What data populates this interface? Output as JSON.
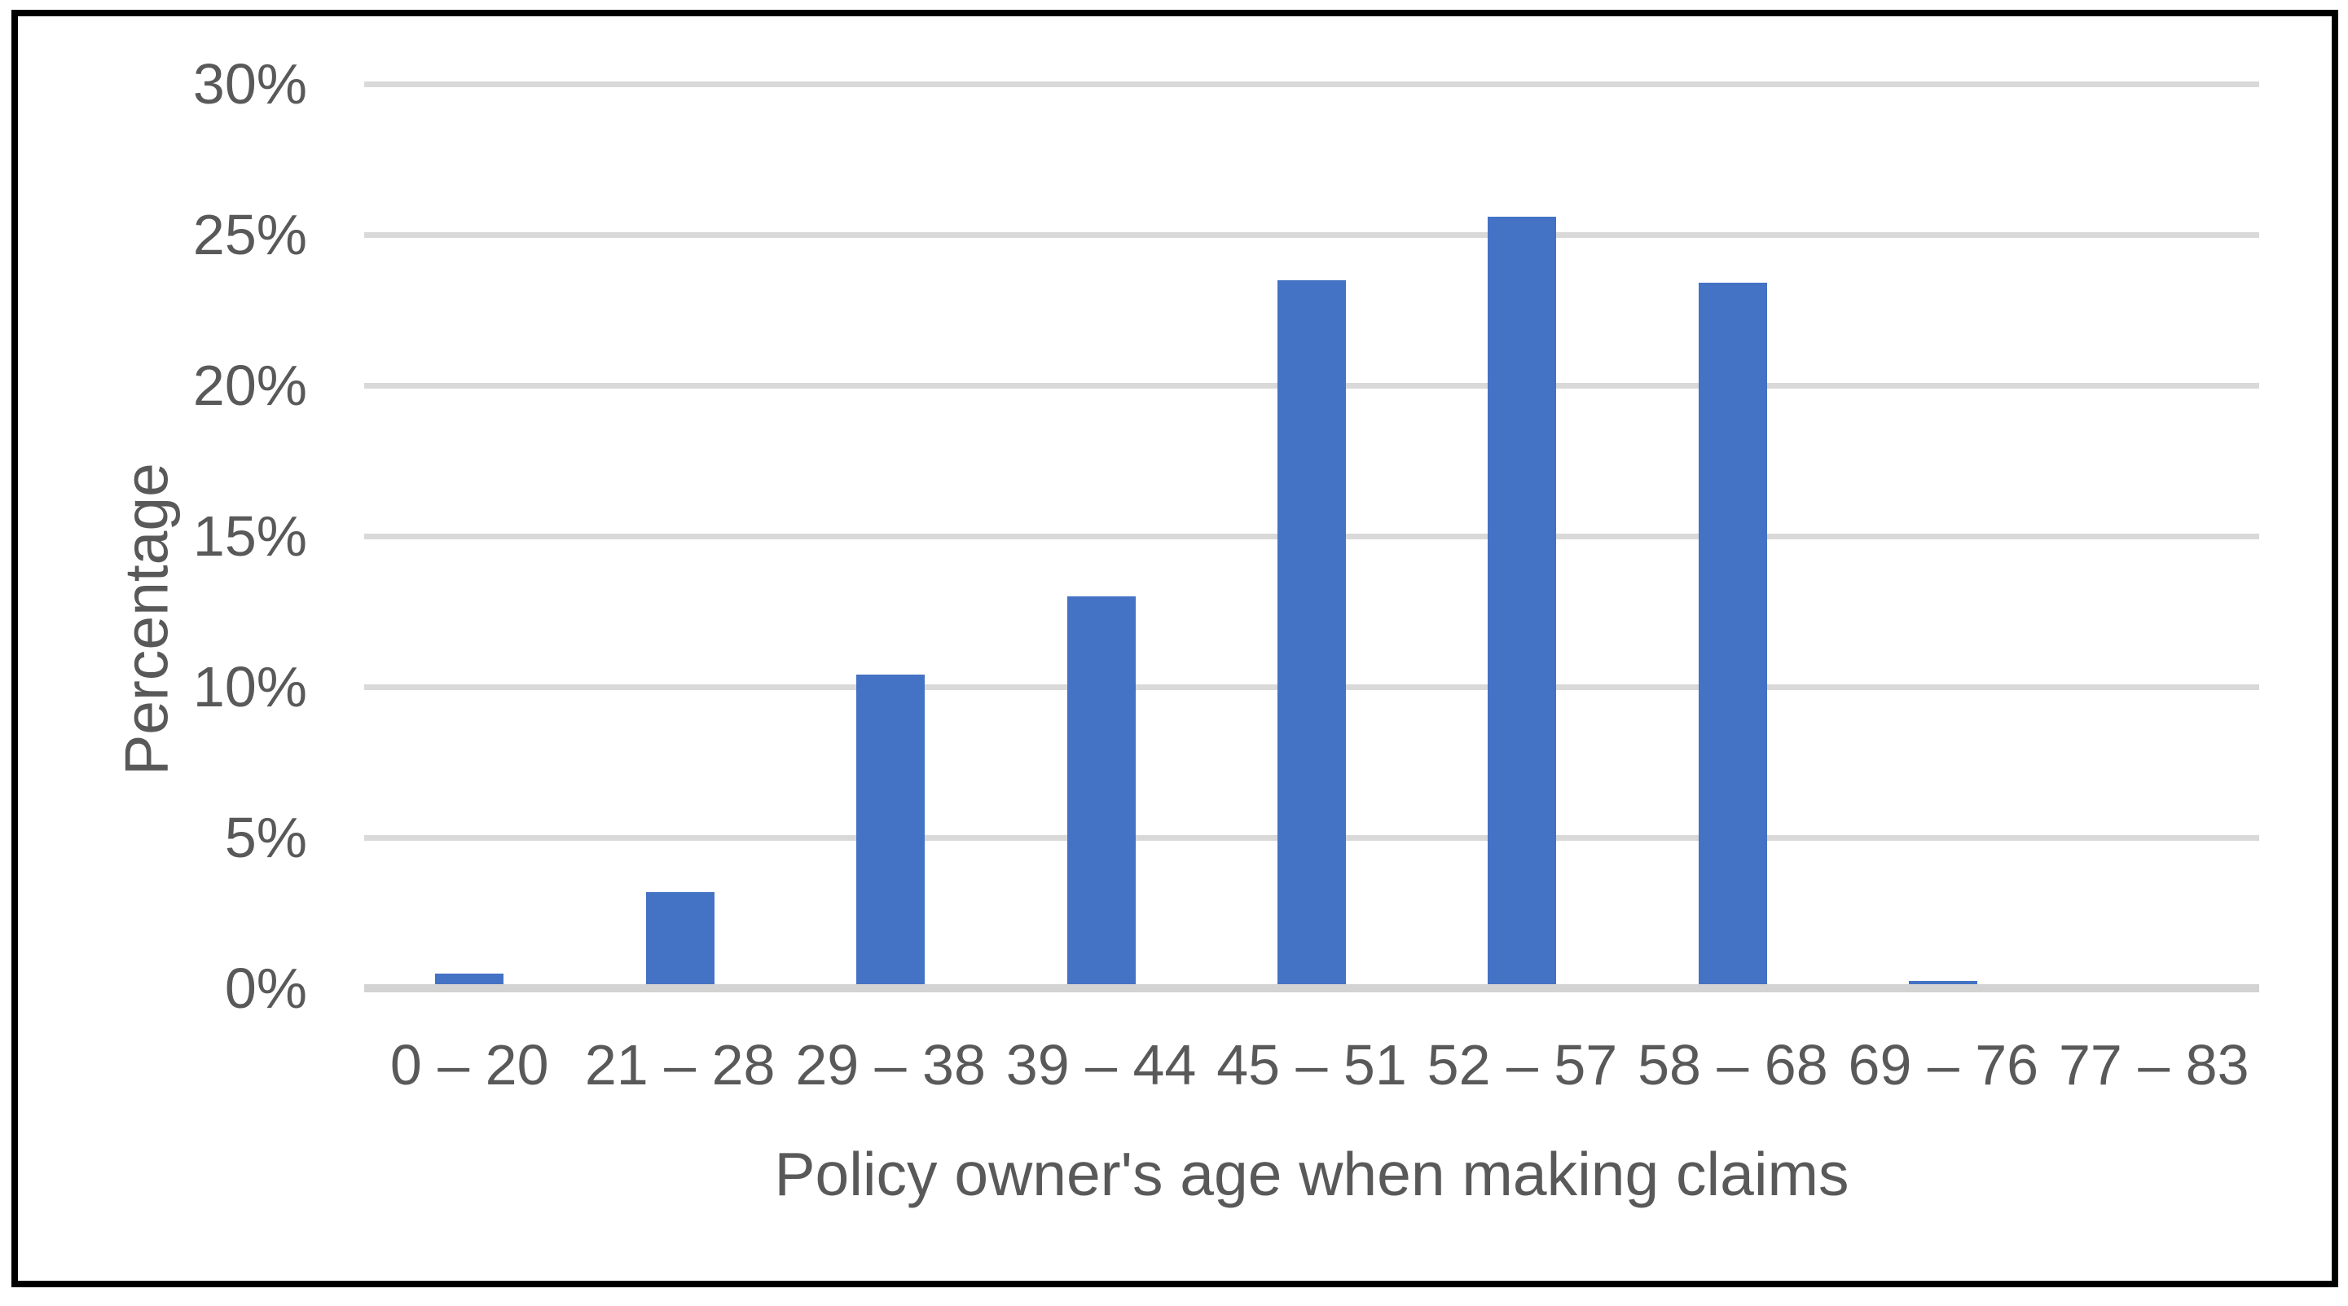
{
  "chart_data": {
    "type": "bar",
    "title": "",
    "categories": [
      "0 – 20",
      "21 – 28",
      "29 – 38",
      "39 – 44",
      "45 – 51",
      "52 – 57",
      "58 – 68",
      "69 – 76",
      "77 – 83"
    ],
    "values": [
      0.5,
      3.2,
      10.4,
      13.0,
      23.5,
      25.6,
      23.4,
      0.25,
      0
    ],
    "xlabel": "Policy owner's age when making claims",
    "ylabel": "Percentage",
    "ylim": [
      0,
      30
    ],
    "ytick_values": [
      0,
      5,
      10,
      15,
      20,
      25,
      30
    ],
    "ytick_labels": [
      "0%",
      "5%",
      "10%",
      "15%",
      "20%",
      "25%",
      "30%"
    ],
    "grid": "horizontal",
    "legend": "none",
    "bar_color": "#4472C4",
    "gridline_color": "#D9D9D9",
    "axis_line_color": "#D3D3D3",
    "text_color": "#595959",
    "frame_color": "#000000",
    "background_color": "#FFFFFF"
  }
}
